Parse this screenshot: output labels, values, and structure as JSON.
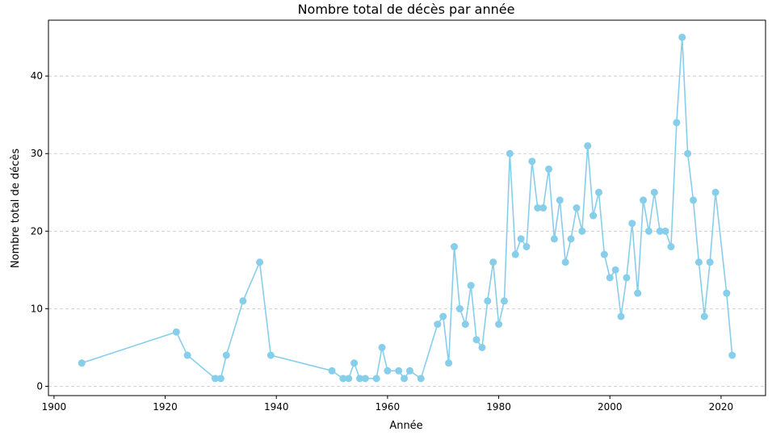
{
  "chart_data": {
    "type": "line",
    "title": "Nombre total de décès par année",
    "xlabel": "Année",
    "ylabel": "Nombre total de décès",
    "xlim": [
      1899,
      2028
    ],
    "ylim": [
      -1.2,
      47.2
    ],
    "xticks": [
      1900,
      1920,
      1940,
      1960,
      1980,
      2000,
      2020
    ],
    "yticks": [
      0,
      10,
      20,
      30,
      40
    ],
    "grid": "y-dashed",
    "line_color": "#87ceeb",
    "series": [
      {
        "x": [
          1905,
          1922,
          1924,
          1929,
          1930,
          1931,
          1934,
          1937,
          1939,
          1950,
          1952,
          1953,
          1954,
          1955,
          1956,
          1958,
          1959,
          1960,
          1962,
          1963,
          1964,
          1966,
          1969,
          1970,
          1971,
          1972,
          1973,
          1974,
          1975,
          1976,
          1977,
          1978,
          1979,
          1980,
          1981,
          1982,
          1983,
          1984,
          1985,
          1986,
          1987,
          1988,
          1989,
          1990,
          1991,
          1992,
          1993,
          1994,
          1995,
          1996,
          1997,
          1998,
          1999,
          2000,
          2001,
          2002,
          2003,
          2004,
          2005,
          2006,
          2007,
          2008,
          2009,
          2010,
          2011,
          2012,
          2013,
          2014,
          2015,
          2016,
          2017,
          2018,
          2019,
          2021,
          2022
        ],
        "y": [
          3,
          7,
          4,
          1,
          1,
          4,
          11,
          16,
          4,
          2,
          1,
          1,
          3,
          1,
          1,
          1,
          5,
          2,
          2,
          1,
          2,
          1,
          8,
          9,
          3,
          18,
          10,
          8,
          13,
          6,
          5,
          11,
          16,
          8,
          11,
          30,
          17,
          19,
          18,
          29,
          23,
          23,
          28,
          19,
          24,
          16,
          19,
          23,
          20,
          31,
          22,
          25,
          17,
          14,
          15,
          9,
          14,
          21,
          12,
          24,
          20,
          25,
          20,
          20,
          18,
          34,
          45,
          30,
          24,
          16,
          9,
          16,
          25,
          12,
          4
        ]
      }
    ]
  }
}
